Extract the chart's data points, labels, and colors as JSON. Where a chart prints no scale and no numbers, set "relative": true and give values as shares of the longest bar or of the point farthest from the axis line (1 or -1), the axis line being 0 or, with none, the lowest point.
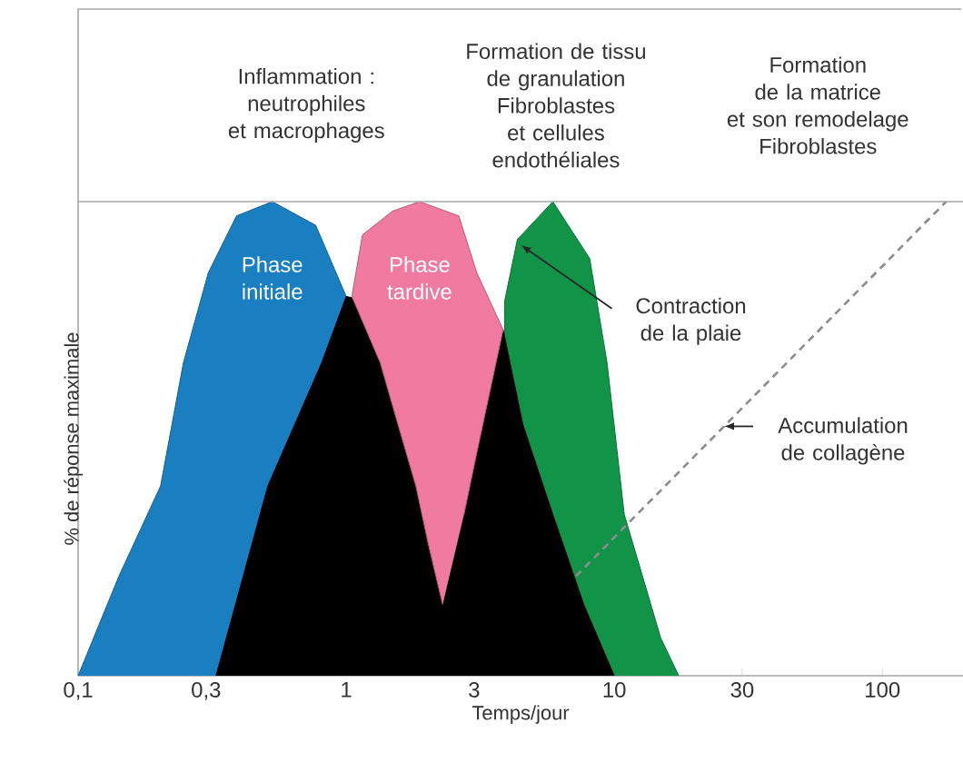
{
  "chart_data": {
    "type": "area",
    "relative": true,
    "log": "x",
    "xlabel": "Temps/jour",
    "ylabel": "% de réponse maximale",
    "xlim": [
      0.1,
      200
    ],
    "xticks": [
      {
        "value": 0.1,
        "label": "0,1"
      },
      {
        "value": 0.3,
        "label": "0,3"
      },
      1,
      3,
      10,
      30,
      100
    ],
    "tick_labels": "x",
    "annotations": [
      "Inflammation :\nneutrophiles\net macrophages",
      "Formation de tissu\nde granulation\nFibroblastes\net cellules\nendothéliales",
      "Formation\nde la matrice\net son remodelage\nFibroblastes"
    ],
    "series": [
      {
        "name": "Phase initiale",
        "color": "#1a7fc1",
        "x": [
          0.1,
          0.142,
          0.203,
          0.247,
          0.306,
          0.39,
          0.53,
          0.77,
          1.0,
          1.0
        ],
        "values": [
          0,
          0.21,
          0.4,
          0.66,
          0.85,
          0.97,
          1.0,
          0.95,
          0.8,
          0
        ]
      },
      {
        "name": "Contraction de la plaie",
        "color": "#129448",
        "x": [
          3.9,
          3.9,
          4.35,
          5.9,
          8.1,
          9.4,
          10.9,
          14.9,
          17.4
        ],
        "values": [
          0,
          0.79,
          0.92,
          1.0,
          0.88,
          0.66,
          0.34,
          0.08,
          0
        ]
      },
      {
        "color": "#000000",
        "x": [
          0.327,
          0.51,
          0.81,
          1.0,
          3.85,
          4.56,
          5.9,
          7.7,
          10
        ],
        "values": [
          0,
          0.4,
          0.66,
          0.8,
          0.73,
          0.53,
          0.34,
          0.15,
          0
        ]
      },
      {
        "name": "Phase tardive",
        "color": "#f07aa0",
        "x": [
          2.29,
          2.02,
          1.82,
          1.56,
          1.34,
          1.05,
          1.15,
          1.49,
          1.88,
          2.63,
          3.07,
          3.85,
          3.07,
          2.75
        ],
        "values": [
          0.15,
          0.28,
          0.4,
          0.53,
          0.66,
          0.8,
          0.93,
          0.98,
          1.0,
          0.97,
          0.85,
          0.73,
          0.47,
          0.34
        ]
      },
      {
        "name": "Accumulation de collagène",
        "type": "line",
        "line_style": "dashed",
        "color": "#8c8c8c",
        "x": [
          7.2,
          173
        ],
        "values": [
          0.21,
          1.0
        ]
      }
    ]
  }
}
